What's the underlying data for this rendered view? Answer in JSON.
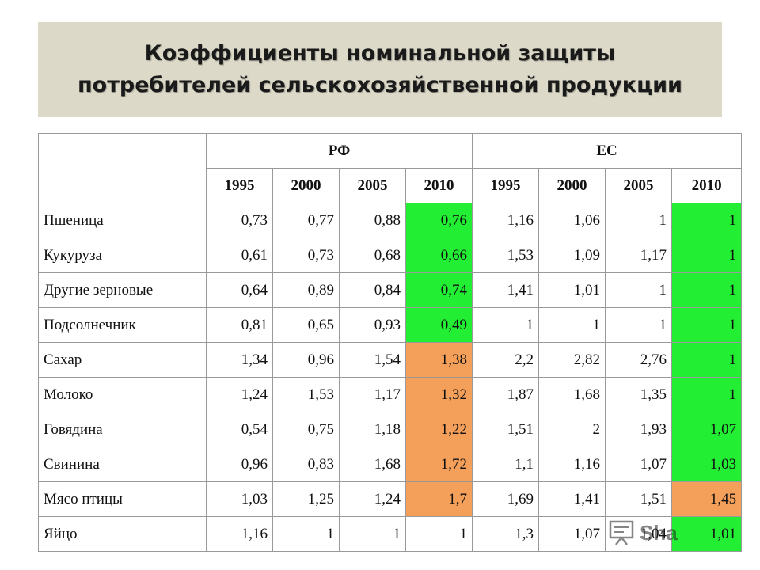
{
  "title": {
    "line1": "Коэффициенты номинальной защиты",
    "line2": "потребителей сельскохозяйственной продукции"
  },
  "table": {
    "groups": [
      "РФ",
      "ЕС"
    ],
    "years": [
      "1995",
      "2000",
      "2005",
      "2010",
      "1995",
      "2000",
      "2005",
      "2010"
    ],
    "rows": [
      {
        "name": "Пшеница",
        "values": [
          "0,73",
          "0,77",
          "0,88",
          "0,76",
          "1,16",
          "1,06",
          "1",
          "1"
        ],
        "highlight": {
          "rf2010": "green",
          "ec2010": "green"
        }
      },
      {
        "name": "Кукуруза",
        "values": [
          "0,61",
          "0,73",
          "0,68",
          "0,66",
          "1,53",
          "1,09",
          "1,17",
          "1"
        ],
        "highlight": {
          "rf2010": "green",
          "ec2010": "green"
        }
      },
      {
        "name": "Другие зерновые",
        "values": [
          "0,64",
          "0,89",
          "0,84",
          "0,74",
          "1,41",
          "1,01",
          "1",
          "1"
        ],
        "highlight": {
          "rf2010": "green",
          "ec2010": "green"
        }
      },
      {
        "name": "Подсолнечник",
        "values": [
          "0,81",
          "0,65",
          "0,93",
          "0,49",
          "1",
          "1",
          "1",
          "1"
        ],
        "highlight": {
          "rf2010": "green",
          "ec2010": "green"
        }
      },
      {
        "name": "Сахар",
        "values": [
          "1,34",
          "0,96",
          "1,54",
          "1,38",
          "2,2",
          "2,82",
          "2,76",
          "1"
        ],
        "highlight": {
          "rf2010": "orange",
          "ec2010": "green"
        }
      },
      {
        "name": "Молоко",
        "values": [
          "1,24",
          "1,53",
          "1,17",
          "1,32",
          "1,87",
          "1,68",
          "1,35",
          "1"
        ],
        "highlight": {
          "rf2010": "orange",
          "ec2010": "green"
        }
      },
      {
        "name": "Говядина",
        "values": [
          "0,54",
          "0,75",
          "1,18",
          "1,22",
          "1,51",
          "2",
          "1,93",
          "1,07"
        ],
        "highlight": {
          "rf2010": "orange",
          "ec2010": "green"
        }
      },
      {
        "name": "Свинина",
        "values": [
          "0,96",
          "0,83",
          "1,68",
          "1,72",
          "1,1",
          "1,16",
          "1,07",
          "1,03"
        ],
        "highlight": {
          "rf2010": "orange",
          "ec2010": "green"
        }
      },
      {
        "name": "Мясо птицы",
        "values": [
          "1,03",
          "1,25",
          "1,24",
          "1,7",
          "1,69",
          "1,41",
          "1,51",
          "1,45"
        ],
        "highlight": {
          "rf2010": "orange",
          "ec2010": "orange"
        }
      },
      {
        "name": "Яйцо",
        "values": [
          "1,16",
          "1",
          "1",
          "1",
          "1,3",
          "1,07",
          "1,04",
          "1,01"
        ],
        "highlight": {
          "rf2010": "none",
          "ec2010": "green"
        }
      }
    ]
  },
  "colors": {
    "title_bg": "#dcd9c8",
    "green": "#22ee33",
    "orange": "#f5a05a",
    "border": "#9a9a9a"
  },
  "watermark": {
    "text": "Sha",
    "icon": "presentation-board-icon"
  }
}
